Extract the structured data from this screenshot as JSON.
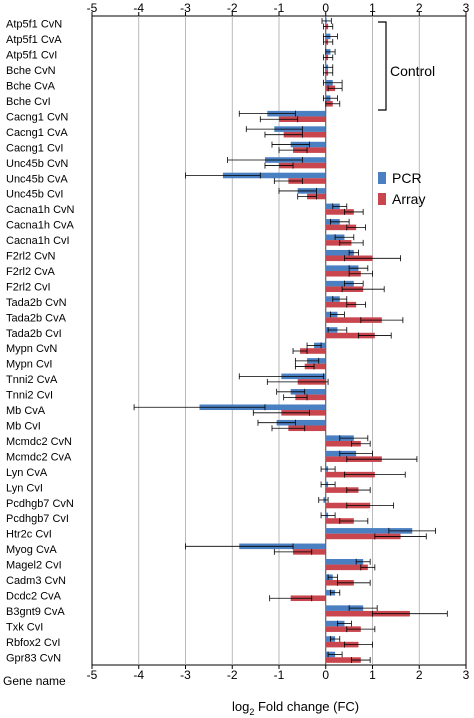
{
  "chart_data": {
    "type": "bar",
    "orientation": "horizontal",
    "xlabel_prefix": "log",
    "xlabel_sub": "2",
    "xlabel_suffix": " Fold change (FC)",
    "category_axis_label": "Gene name",
    "xlim": [
      -5,
      3
    ],
    "ticks": [
      -5,
      -4,
      -3,
      -2,
      -1,
      0,
      1,
      2,
      3
    ],
    "tick_labels": [
      "-5",
      "-4",
      "-3",
      "-2",
      "-1",
      "0",
      "1",
      "2",
      "3"
    ],
    "grid": true,
    "legend_position": "right",
    "annotation": "Control",
    "categories": [
      "Atp5f1 CvN",
      "Atp5f1 CvA",
      "Atp5f1 CvI",
      "Bche CvN",
      "Bche CvA",
      "Bche CvI",
      "Cacng1 CvN",
      "Cacng1 CvA",
      "Cacng1 CvI",
      "Unc45b CvN",
      "Unc45b CvA",
      "Unc45b CvI",
      "Cacna1h CvN",
      "Cacna1h CvA",
      "Cacna1h CvI",
      "F2rl2 CvN",
      "F2rl2 CvA",
      "F2rl2 CvI",
      "Tada2b CvN",
      "Tada2b CvA",
      "Tada2b CvI",
      "Mypn CvN",
      "Mypn CvI",
      "Tnni2 CvA",
      "Tnni2 CvI",
      "Mb CvA",
      "Mb CvI",
      "Mcmdc2 CvN",
      "Mcmdc2 CvA",
      "Lyn CvA",
      "Lyn CvI",
      "Pcdhgb7 CvN",
      "Pcdhgb7 CvI",
      "Htr2c CvI",
      "Myog CvA",
      "Magel2 CvI",
      "Cadm3 CvN",
      "Dcdc2 CvA",
      "B3gnt9 CvA",
      "Txk CvI",
      "Rbfox2 CvI",
      "Gpr83 CvN"
    ],
    "series": [
      {
        "name": "PCR",
        "color": "#4a7fc1",
        "values": [
          0.02,
          0.1,
          0.1,
          0.05,
          0.15,
          0.1,
          -1.25,
          -1.1,
          -0.75,
          -1.3,
          -2.2,
          -0.6,
          0.3,
          0.3,
          0.4,
          0.6,
          0.7,
          0.6,
          0.3,
          0.25,
          0.25,
          -0.25,
          -0.4,
          -0.95,
          -0.75,
          -2.7,
          -1.05,
          0.6,
          0.65,
          0.05,
          0.05,
          -0.05,
          0.05,
          1.85,
          -1.85,
          0.8,
          0.15,
          0.2,
          0.8,
          0.4,
          0.2,
          0.2
        ],
        "errors": [
          0.1,
          0.15,
          0.1,
          0.1,
          0.2,
          0.15,
          0.6,
          0.6,
          0.4,
          0.8,
          0.8,
          0.4,
          0.15,
          0.2,
          0.2,
          0.1,
          0.2,
          0.2,
          0.15,
          0.15,
          0.2,
          0.15,
          0.25,
          0.9,
          0.3,
          1.4,
          0.4,
          0.3,
          0.35,
          0.15,
          0.15,
          0.1,
          0.15,
          0.5,
          1.15,
          0.15,
          0.1,
          0.1,
          0.3,
          0.15,
          0.1,
          0.15
        ]
      },
      {
        "name": "Array",
        "color": "#c9464e",
        "values": [
          0.05,
          0.05,
          0.05,
          0.05,
          0.2,
          0.15,
          -1.0,
          -0.9,
          -0.7,
          -1.0,
          -0.8,
          -0.4,
          0.6,
          0.65,
          0.55,
          1.0,
          0.75,
          0.8,
          0.65,
          1.2,
          1.05,
          -0.55,
          -0.45,
          -0.6,
          -0.65,
          -0.95,
          -0.8,
          0.75,
          1.2,
          1.05,
          0.7,
          0.95,
          0.6,
          1.6,
          -0.7,
          0.9,
          0.6,
          -0.75,
          1.8,
          0.75,
          0.7,
          0.75
        ]
      }
    ],
    "errors_array": [
      0.1,
      0.1,
      0.1,
      0.1,
      0.15,
      0.15,
      0.4,
      0.4,
      0.3,
      0.3,
      0.3,
      0.2,
      0.2,
      0.2,
      0.25,
      0.6,
      0.25,
      0.45,
      0.2,
      0.45,
      0.35,
      0.15,
      0.2,
      0.65,
      0.25,
      0.6,
      0.35,
      0.2,
      0.75,
      0.65,
      0.25,
      0.5,
      0.3,
      0.55,
      0.4,
      0.15,
      0.35,
      0.45,
      0.8,
      0.3,
      0.3,
      0.2
    ]
  }
}
